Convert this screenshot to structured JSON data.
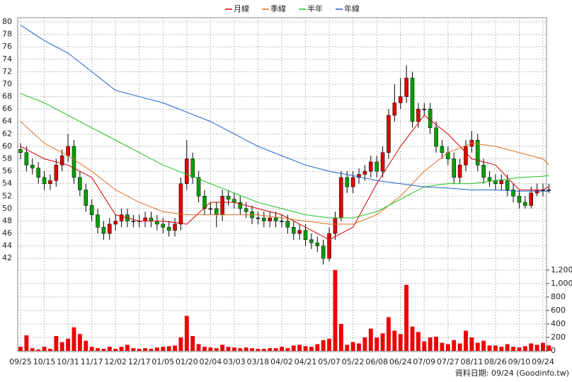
{
  "chart_data": {
    "type": "candlestick",
    "categories": [
      "09/25",
      null,
      null,
      null,
      "10/15",
      null,
      null,
      null,
      "10/31",
      null,
      null,
      null,
      "11/17",
      null,
      null,
      null,
      "12/02",
      null,
      null,
      null,
      "12/17",
      null,
      null,
      null,
      "01/05",
      null,
      null,
      null,
      "01/20",
      null,
      null,
      null,
      "02/04",
      null,
      null,
      null,
      "03/03",
      null,
      null,
      null,
      "03/18",
      null,
      null,
      null,
      "04/02",
      null,
      null,
      null,
      "04/21",
      null,
      null,
      null,
      "05/07",
      null,
      null,
      null,
      "05/22",
      null,
      null,
      null,
      "06/08",
      null,
      null,
      null,
      "06/24",
      null,
      null,
      null,
      "07/09",
      null,
      null,
      null,
      "07/27",
      null,
      null,
      null,
      "08/11",
      null,
      null,
      null,
      "08/26",
      null,
      null,
      null,
      "09/10",
      null,
      null,
      null,
      "09/24",
      null
    ],
    "open": [
      59.5,
      59,
      57,
      56.5,
      55,
      54,
      54.5,
      57,
      58.5,
      60,
      55,
      53,
      50.5,
      49,
      47,
      46,
      47.5,
      48,
      49,
      48,
      48,
      48,
      48.5,
      48,
      47.5,
      47,
      46.5,
      47.5,
      54,
      58,
      55,
      52,
      50,
      50,
      49,
      52,
      51.5,
      51,
      50,
      49.5,
      48.5,
      48.5,
      48,
      48.5,
      48,
      48,
      47,
      46,
      46.5,
      45,
      44.5,
      44,
      42,
      46,
      48.5,
      55,
      53.5,
      55,
      55.5,
      56,
      57.5,
      56,
      59,
      65,
      67,
      68,
      71,
      64,
      66,
      66,
      63,
      60,
      59,
      58,
      55,
      57,
      60,
      61,
      57,
      55,
      54.5,
      54,
      54.5,
      53,
      52,
      51,
      50.5,
      52.5,
      53,
      53
    ],
    "high": [
      60.5,
      60,
      58,
      57.5,
      56,
      55.5,
      58,
      59.5,
      62,
      61,
      56,
      54,
      51.5,
      50,
      48,
      48.5,
      49,
      50,
      50,
      49,
      49,
      49.5,
      49.5,
      49,
      48.5,
      48,
      48.5,
      55,
      61,
      59,
      56,
      53,
      51,
      51,
      53,
      53,
      52.5,
      52,
      51,
      50.5,
      49.5,
      49.5,
      49.5,
      49.5,
      49,
      49,
      48,
      47.5,
      47.5,
      46,
      45.5,
      45,
      47,
      49.5,
      56,
      56,
      56,
      56.5,
      57,
      58.5,
      58.5,
      60,
      66,
      70,
      71,
      73,
      72,
      67,
      67,
      67,
      64,
      61,
      60,
      59,
      58,
      61,
      62.5,
      62,
      58,
      56,
      55.5,
      55.5,
      55.5,
      54,
      53,
      52,
      53.5,
      54,
      54,
      54
    ],
    "low": [
      58,
      56,
      55.5,
      54,
      53,
      53,
      53.5,
      56,
      57.5,
      54,
      52,
      49.5,
      48,
      46,
      45,
      45,
      46.5,
      47,
      47,
      47,
      47,
      47,
      47,
      46.5,
      46,
      45.5,
      45.5,
      46.5,
      53,
      54,
      51,
      49,
      49,
      47,
      48,
      50.5,
      50,
      49,
      48.5,
      47.5,
      47.5,
      47,
      47,
      47,
      47,
      46,
      45,
      45,
      44,
      43.5,
      43,
      41,
      41.5,
      45,
      48,
      52.5,
      52.5,
      54,
      54.5,
      55,
      55,
      55,
      58,
      64,
      66,
      67,
      63,
      63,
      65,
      62,
      59,
      58,
      57,
      54,
      54,
      56,
      59,
      56,
      54,
      53.5,
      53,
      53,
      52,
      51,
      50,
      50,
      50,
      52,
      52,
      52.5
    ],
    "close": [
      59,
      57,
      56.5,
      55,
      54,
      54.5,
      57,
      58.5,
      60,
      55,
      53,
      50.5,
      49,
      47,
      46,
      47.5,
      48,
      49,
      48,
      48,
      48,
      48.5,
      48,
      47.5,
      47,
      46.5,
      47.5,
      54,
      58,
      55,
      52,
      50,
      50,
      49,
      52,
      51.5,
      51,
      50,
      49.5,
      48.5,
      48.5,
      48,
      48.5,
      48,
      48,
      47,
      46,
      46.5,
      45,
      44.5,
      44,
      42,
      46,
      48.5,
      55,
      53.5,
      55,
      55.5,
      56,
      57.5,
      56,
      59,
      65,
      67,
      68,
      71,
      64,
      66,
      66,
      63,
      60,
      59,
      58,
      55,
      57,
      60,
      61,
      57,
      55,
      54.5,
      54,
      54.5,
      53,
      52,
      51,
      50.5,
      52.5,
      53,
      53,
      53
    ],
    "up_color": "#e00000",
    "down_color": "#00a000",
    "flat_color": "#000000",
    "ylim": [
      41,
      80.8
    ],
    "yticks": [
      42,
      44,
      46,
      48,
      50,
      52,
      54,
      56,
      58,
      60,
      62,
      64,
      66,
      68,
      70,
      72,
      74,
      76,
      78,
      80
    ],
    "grid": true,
    "series": [
      {
        "name": "月線",
        "color": "#d00000",
        "x": [
          0,
          4,
          8,
          12,
          16,
          20,
          24,
          28,
          32,
          36,
          40,
          44,
          48,
          52,
          56,
          60,
          64,
          68,
          72,
          76,
          80,
          84,
          88,
          89
        ],
        "values": [
          60,
          58,
          57,
          55,
          49,
          48,
          48,
          47.5,
          51,
          51,
          50,
          49,
          47,
          45,
          47,
          54,
          60,
          65,
          62,
          58,
          57,
          53,
          53,
          53.5
        ]
      },
      {
        "name": "季線",
        "color": "#e07020",
        "x": [
          0,
          4,
          8,
          12,
          16,
          20,
          24,
          28,
          32,
          36,
          40,
          44,
          48,
          52,
          56,
          60,
          64,
          68,
          72,
          76,
          80,
          84,
          88,
          89
        ],
        "values": [
          64,
          60.5,
          58.5,
          56,
          53,
          51,
          49.5,
          49,
          49,
          49,
          49,
          48.5,
          48,
          47.5,
          47.5,
          49,
          52,
          56,
          59,
          60.5,
          60,
          59,
          58,
          57
        ]
      },
      {
        "name": "半年",
        "color": "#20c020",
        "x": [
          0,
          4,
          8,
          12,
          16,
          20,
          24,
          28,
          32,
          36,
          40,
          44,
          48,
          52,
          56,
          60,
          64,
          68,
          72,
          76,
          80,
          84,
          88,
          89
        ],
        "values": [
          68.5,
          67,
          65,
          63,
          61,
          59,
          57,
          55.5,
          54,
          52.5,
          51,
          50,
          49,
          48.5,
          48.5,
          49.5,
          51.5,
          53.5,
          54,
          54,
          54.5,
          55,
          55.2,
          55.3
        ]
      },
      {
        "name": "年線",
        "color": "#2060d0",
        "x": [
          0,
          4,
          8,
          12,
          16,
          20,
          24,
          28,
          32,
          36,
          40,
          44,
          48,
          52,
          56,
          60,
          64,
          68,
          72,
          76,
          80,
          84,
          88,
          89
        ],
        "values": [
          79.5,
          77,
          75,
          72,
          69,
          68,
          67,
          65.5,
          64,
          62,
          60,
          58.5,
          57,
          56,
          55.3,
          54.5,
          54,
          53.5,
          53.3,
          53,
          53,
          52.8,
          52.8,
          52.8
        ]
      }
    ],
    "volume": {
      "color": "#ee0000",
      "ylim": [
        0,
        1250
      ],
      "yticks": [
        0,
        200,
        400,
        600,
        800,
        {
          "value": 1000,
          "label": "1,000"
        },
        {
          "value": 1200,
          "label": "1,200"
        }
      ],
      "values": [
        60,
        230,
        40,
        20,
        60,
        30,
        220,
        130,
        180,
        350,
        250,
        150,
        60,
        40,
        30,
        60,
        30,
        60,
        90,
        40,
        30,
        40,
        30,
        50,
        60,
        70,
        80,
        200,
        520,
        220,
        100,
        60,
        50,
        40,
        90,
        60,
        50,
        40,
        50,
        40,
        30,
        30,
        40,
        40,
        60,
        40,
        80,
        90,
        70,
        60,
        100,
        160,
        180,
        1200,
        400,
        90,
        130,
        110,
        200,
        330,
        200,
        260,
        500,
        300,
        250,
        980,
        360,
        280,
        140,
        200,
        210,
        120,
        100,
        160,
        110,
        300,
        200,
        120,
        150,
        80,
        80,
        60,
        100,
        60,
        50,
        70,
        110,
        90,
        120,
        80
      ]
    },
    "source": "資料日期: 09/24  (Goodinfo.tw)"
  }
}
